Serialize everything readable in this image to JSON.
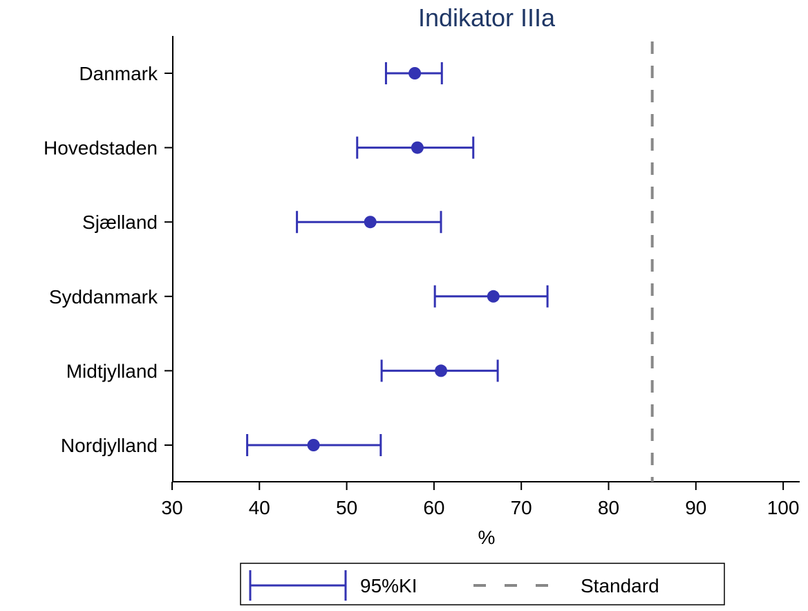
{
  "chart_data": {
    "type": "scatter",
    "subtype": "forest-plot",
    "title": "Indikator IIIa",
    "xlabel": "%",
    "ylabel": "",
    "xlim": [
      30,
      100
    ],
    "xticks": [
      30,
      40,
      50,
      60,
      70,
      80,
      90,
      100
    ],
    "categories": [
      "Danmark",
      "Hovedstaden",
      "Sjælland",
      "Syddanmark",
      "Midtjylland",
      "Nordjylland"
    ],
    "estimates": [
      57.8,
      58.1,
      52.7,
      66.8,
      60.8,
      46.2
    ],
    "ci_lower": [
      54.5,
      51.2,
      44.3,
      60.1,
      54.0,
      38.6
    ],
    "ci_upper": [
      60.9,
      64.5,
      60.8,
      73.0,
      67.3,
      53.9
    ],
    "reference_line": {
      "value": 85,
      "label": "Standard",
      "style": "dashed"
    },
    "legend": {
      "placement": "bottom",
      "entries": [
        {
          "label": "95%KI",
          "marker": "error-bar"
        },
        {
          "label": "Standard",
          "marker": "dashed-line"
        }
      ]
    },
    "grid": false,
    "colors": {
      "series": "#3333b3",
      "reference": "#888888",
      "title": "#1f3766",
      "axis": "#000000"
    }
  }
}
